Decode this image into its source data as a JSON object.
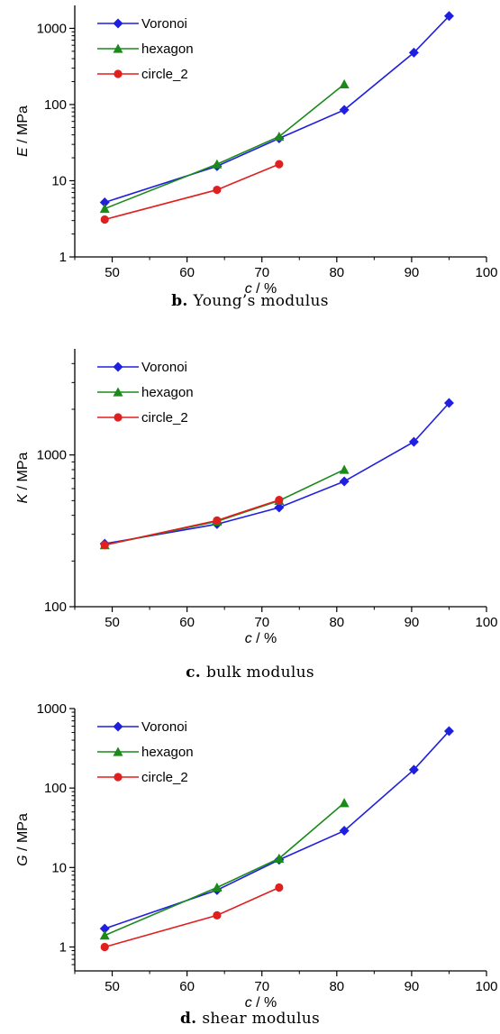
{
  "chart_data": [
    {
      "type": "line",
      "panel_letter": "b.",
      "caption": "Young’s modulus",
      "ylabel_var": "E",
      "ylabel_unit": " / MPa",
      "xlabel_var": "c",
      "xlabel_unit": " / %",
      "xlim": [
        45,
        100
      ],
      "xticks": [
        "50",
        "60",
        "70",
        "80",
        "90",
        "100"
      ],
      "ylim": [
        1,
        2000
      ],
      "yscale": "log",
      "yticks": [
        "1",
        "10",
        "100",
        "1000"
      ],
      "legend_position": "top-left",
      "series": [
        {
          "name": "Voronoi",
          "color": "#1f1fe0",
          "marker": "diamond",
          "x": [
            49,
            64,
            72.3,
            81,
            90.3,
            95
          ],
          "y": [
            5.2,
            15.5,
            36,
            85,
            480,
            1450
          ]
        },
        {
          "name": "hexagon",
          "color": "#1a8a1a",
          "marker": "triangle",
          "x": [
            49,
            64,
            72.3,
            81
          ],
          "y": [
            4.3,
            16.5,
            38,
            185
          ]
        },
        {
          "name": "circle_2",
          "color": "#e01f1f",
          "marker": "circle",
          "x": [
            49,
            64,
            72.3
          ],
          "y": [
            3.1,
            7.6,
            16.5
          ]
        }
      ]
    },
    {
      "type": "line",
      "panel_letter": "c.",
      "caption": "bulk modulus",
      "ylabel_var": "K",
      "ylabel_unit": " / MPa",
      "xlabel_var": "c",
      "xlabel_unit": " / %",
      "xlim": [
        45,
        100
      ],
      "xticks": [
        "50",
        "60",
        "70",
        "80",
        "90",
        "100"
      ],
      "ylim": [
        100,
        5000
      ],
      "yscale": "log",
      "yticks": [
        "100",
        "1000"
      ],
      "legend_position": "top-left",
      "series": [
        {
          "name": "Voronoi",
          "color": "#1f1fe0",
          "marker": "diamond",
          "x": [
            49,
            64,
            72.3,
            81,
            90.3,
            95
          ],
          "y": [
            260,
            350,
            450,
            670,
            1220,
            2200
          ]
        },
        {
          "name": "hexagon",
          "color": "#1a8a1a",
          "marker": "triangle",
          "x": [
            49,
            64,
            72.3,
            81
          ],
          "y": [
            255,
            365,
            500,
            800
          ]
        },
        {
          "name": "circle_2",
          "color": "#e01f1f",
          "marker": "circle",
          "x": [
            49,
            64,
            72.3
          ],
          "y": [
            255,
            370,
            505
          ]
        }
      ]
    },
    {
      "type": "line",
      "panel_letter": "d.",
      "caption": "shear modulus",
      "ylabel_var": "G",
      "ylabel_unit": " / MPa",
      "xlabel_var": "c",
      "xlabel_unit": " / %",
      "xlim": [
        45,
        100
      ],
      "xticks": [
        "50",
        "60",
        "70",
        "80",
        "90",
        "100"
      ],
      "ylim": [
        0.5,
        1000
      ],
      "yscale": "log",
      "yticks": [
        "1",
        "10",
        "100",
        "1000"
      ],
      "legend_position": "top-left",
      "series": [
        {
          "name": "Voronoi",
          "color": "#1f1fe0",
          "marker": "diamond",
          "x": [
            49,
            64,
            72.3,
            81,
            90.3,
            95
          ],
          "y": [
            1.7,
            5.2,
            12.5,
            29,
            170,
            520
          ]
        },
        {
          "name": "hexagon",
          "color": "#1a8a1a",
          "marker": "triangle",
          "x": [
            49,
            64,
            72.3,
            81
          ],
          "y": [
            1.4,
            5.6,
            13,
            65
          ]
        },
        {
          "name": "circle_2",
          "color": "#e01f1f",
          "marker": "circle",
          "x": [
            49,
            64,
            72.3
          ],
          "y": [
            1.0,
            2.5,
            5.6
          ]
        }
      ]
    }
  ]
}
